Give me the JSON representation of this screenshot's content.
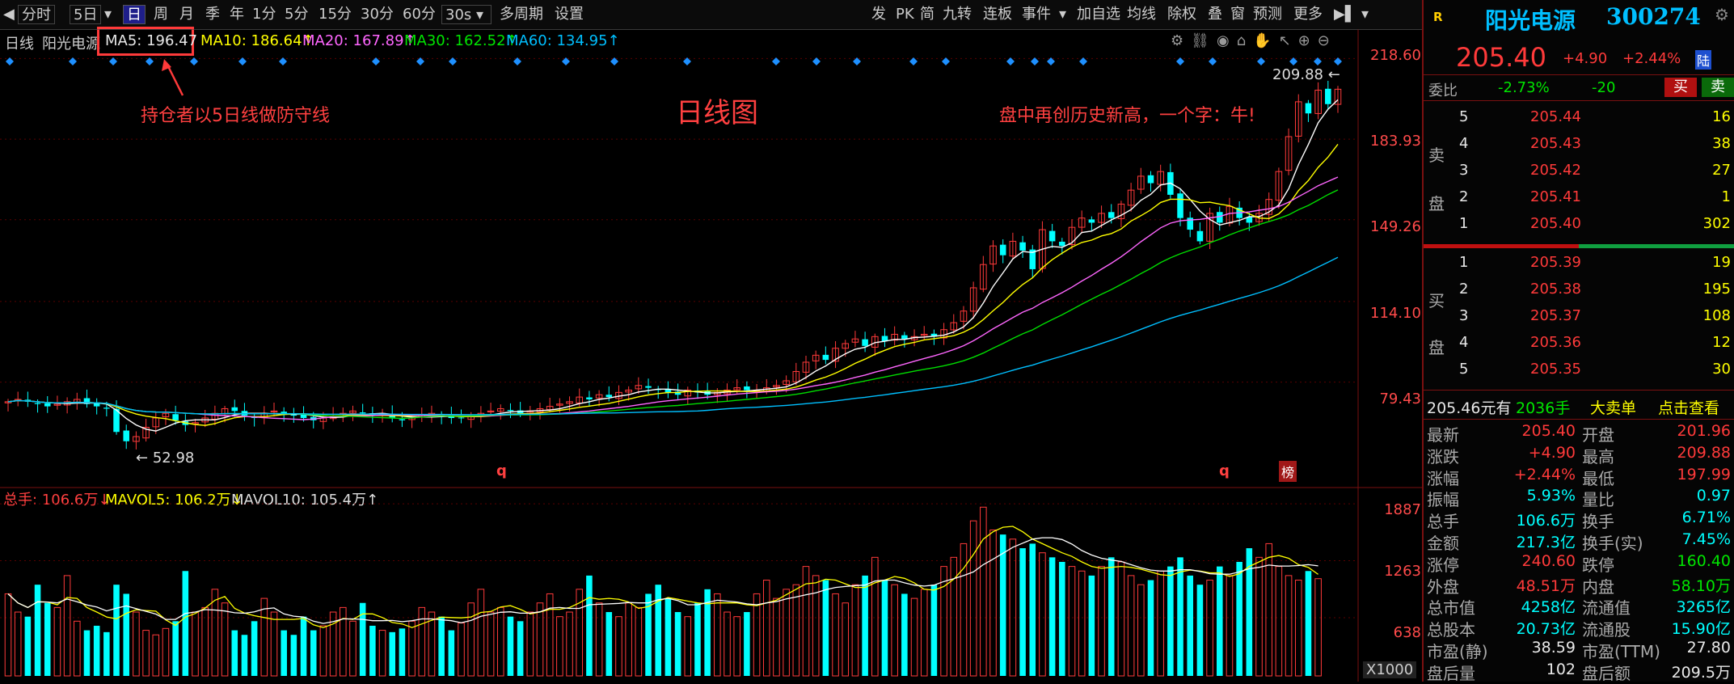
{
  "toolbar": {
    "left_items": [
      "分时",
      "5日",
      "日",
      "周",
      "月",
      "季",
      "年",
      "1分",
      "5分",
      "15分",
      "30分",
      "60分",
      "30s",
      "多周期",
      "设置"
    ],
    "active": "日",
    "right_items": [
      "发",
      "PK",
      "简",
      "九转",
      "连板",
      "事件",
      "加自选",
      "均线",
      "除权",
      "叠",
      "窗",
      "预测",
      "更多"
    ]
  },
  "legend": {
    "period": "日线",
    "stock_name": "阳光电源",
    "ma5": "MA5: 196.47",
    "ma10": "MA10: 186.64↑",
    "ma20": "MA20: 167.89↑",
    "ma30": "MA30: 162.52↑",
    "ma60": "MA60: 134.95↑"
  },
  "annotations": {
    "ma5_note": "持仓者以5日线做防守线",
    "title": "日线图",
    "high_note": "盘中再创历史新高，一个字：牛!",
    "high_value": "209.88",
    "low_value": "52.98",
    "q1": "q",
    "q2": "q",
    "bang": "榜"
  },
  "vol_legend": {
    "total": "总手: 106.6万↓",
    "mavol5": "MAVOL5: 106.2万↓",
    "mavol10": "MAVOL10: 105.4万↑",
    "unit": "X1000"
  },
  "colors": {
    "up": "#ff3a3a",
    "down": "#00ffff",
    "ma5": "#ffffff",
    "ma10": "#ffff00",
    "ma20": "#ff66ff",
    "ma30": "#00dd00",
    "ma60": "#00bfff"
  },
  "chart_data": {
    "type": "candlestick",
    "price_axis": {
      "ticks": [
        218.6,
        183.93,
        149.26,
        114.1,
        79.43
      ],
      "ylim": [
        40,
        225
      ]
    },
    "volume_axis": {
      "ticks": [
        1887,
        1263,
        638
      ],
      "ylim": [
        0,
        1950
      ]
    },
    "ma_latest": {
      "MA5": 196.47,
      "MA10": 186.64,
      "MA20": 167.89,
      "MA30": 162.52,
      "MA60": 134.95
    },
    "close_series": [
      71,
      72,
      71,
      70,
      69,
      70,
      71,
      72,
      70,
      69,
      68,
      58,
      54,
      56,
      60,
      64,
      66,
      63,
      61,
      62,
      64,
      66,
      68,
      67,
      65,
      64,
      66,
      67,
      66,
      65,
      64,
      63,
      64,
      65,
      66,
      67,
      66,
      65,
      66,
      64,
      63,
      64,
      65,
      66,
      65,
      64,
      64,
      65,
      66,
      67,
      68,
      67,
      66,
      67,
      68,
      69,
      70,
      71,
      73,
      72,
      74,
      73,
      75,
      76,
      78,
      77,
      76,
      75,
      74,
      76,
      75,
      74,
      75,
      76,
      77,
      76,
      76,
      77,
      78,
      80,
      84,
      88,
      91,
      89,
      94,
      96,
      98,
      95,
      99,
      97,
      100,
      98,
      99,
      100,
      99,
      102,
      105,
      110,
      120,
      130,
      138,
      134,
      140,
      136,
      128,
      145,
      140,
      138,
      146,
      150,
      148,
      152,
      150,
      156,
      162,
      168,
      165,
      170,
      160,
      150,
      145,
      140,
      152,
      148,
      155,
      150,
      148,
      152,
      158,
      170,
      185,
      200,
      195,
      205,
      199,
      205.4
    ],
    "volume_series": [
      900,
      700,
      650,
      1000,
      800,
      750,
      1100,
      600,
      500,
      550,
      480,
      1000,
      900,
      700,
      500,
      450,
      520,
      600,
      1150,
      700,
      750,
      950,
      800,
      500,
      450,
      600,
      850,
      700,
      500,
      450,
      650,
      500,
      550,
      700,
      750,
      600,
      800,
      550,
      500,
      480,
      520,
      600,
      750,
      700,
      650,
      500,
      580,
      800,
      950,
      700,
      750,
      650,
      600,
      700,
      800,
      900,
      650,
      700,
      950,
      1100,
      800,
      700,
      650,
      800,
      750,
      900,
      1000,
      850,
      700,
      650,
      800,
      950,
      900,
      700,
      650,
      700,
      900,
      1050,
      850,
      950,
      1000,
      1200,
      1100,
      1050,
      900,
      800,
      1000,
      1100,
      1300,
      1050,
      1000,
      900,
      850,
      950,
      1000,
      1200,
      1300,
      1450,
      1700,
      1850,
      1600,
      1550,
      1500,
      1400,
      1450,
      1350,
      1300,
      1250,
      1200,
      1150,
      1100,
      1200,
      1300,
      1250,
      1100,
      1000,
      1050,
      1150,
      1200,
      1300,
      1100,
      1000,
      1050,
      1200,
      1100,
      1250,
      1400,
      1300,
      1450,
      1200,
      1100,
      1050,
      1150,
      1066
    ]
  },
  "quote": {
    "flag": "R",
    "name": "阳光电源",
    "code": "300274",
    "price": "205.40",
    "change": "+4.90",
    "change_pct": "+2.44%",
    "market": "陆",
    "webi_label": "委比",
    "webi": "-2.73%",
    "weicha": "-20",
    "buy_btn": "买",
    "sell_btn": "卖",
    "sell_side": [
      "卖",
      "盘"
    ],
    "buy_side": [
      "买",
      "盘"
    ],
    "asks": [
      {
        "lvl": "5",
        "price": "205.44",
        "vol": "16"
      },
      {
        "lvl": "4",
        "price": "205.43",
        "vol": "38"
      },
      {
        "lvl": "3",
        "price": "205.42",
        "vol": "27"
      },
      {
        "lvl": "2",
        "price": "205.41",
        "vol": "1"
      },
      {
        "lvl": "1",
        "price": "205.40",
        "vol": "302"
      }
    ],
    "bids": [
      {
        "lvl": "1",
        "price": "205.39",
        "vol": "19"
      },
      {
        "lvl": "2",
        "price": "205.38",
        "vol": "195"
      },
      {
        "lvl": "3",
        "price": "205.37",
        "vol": "108"
      },
      {
        "lvl": "4",
        "price": "205.36",
        "vol": "12"
      },
      {
        "lvl": "5",
        "price": "205.35",
        "vol": "30"
      }
    ],
    "bigorder": {
      "a": "205.46元有",
      "b": "2036手",
      "c": "大卖单",
      "d": "点击查看"
    },
    "stats": [
      {
        "l1": "最新",
        "v1": "205.40",
        "c1": "red",
        "l2": "开盘",
        "v2": "201.96",
        "c2": "red"
      },
      {
        "l1": "涨跌",
        "v1": "+4.90",
        "c1": "red",
        "l2": "最高",
        "v2": "209.88",
        "c2": "red"
      },
      {
        "l1": "涨幅",
        "v1": "+2.44%",
        "c1": "red",
        "l2": "最低",
        "v2": "197.99",
        "c2": "red"
      },
      {
        "l1": "振幅",
        "v1": "5.93%",
        "c1": "cyan",
        "l2": "量比",
        "v2": "0.97",
        "c2": "cyan"
      },
      {
        "l1": "总手",
        "v1": "106.6万",
        "c1": "cyan",
        "l2": "换手",
        "v2": "6.71%",
        "c2": "cyan"
      },
      {
        "l1": "金额",
        "v1": "217.3亿",
        "c1": "cyan",
        "l2": "换手(实)",
        "v2": "7.45%",
        "c2": "cyan"
      },
      {
        "l1": "涨停",
        "v1": "240.60",
        "c1": "red",
        "l2": "跌停",
        "v2": "160.40",
        "c2": "green"
      },
      {
        "l1": "外盘",
        "v1": "48.51万",
        "c1": "red",
        "l2": "内盘",
        "v2": "58.10万",
        "c2": "green"
      },
      {
        "l1": "总市值",
        "v1": "4258亿",
        "c1": "cyan",
        "l2": "流通值",
        "v2": "3265亿",
        "c2": "cyan"
      },
      {
        "l1": "总股本",
        "v1": "20.73亿",
        "c1": "cyan",
        "l2": "流通股",
        "v2": "15.90亿",
        "c2": "cyan"
      },
      {
        "l1": "市盈(静)",
        "v1": "38.59",
        "c1": "white",
        "l2": "市盈(TTM)",
        "v2": "27.80",
        "c2": "white"
      },
      {
        "l1": "盘后量",
        "v1": "102",
        "c1": "white",
        "l2": "盘后额",
        "v2": "209.5万",
        "c2": "white"
      }
    ]
  }
}
